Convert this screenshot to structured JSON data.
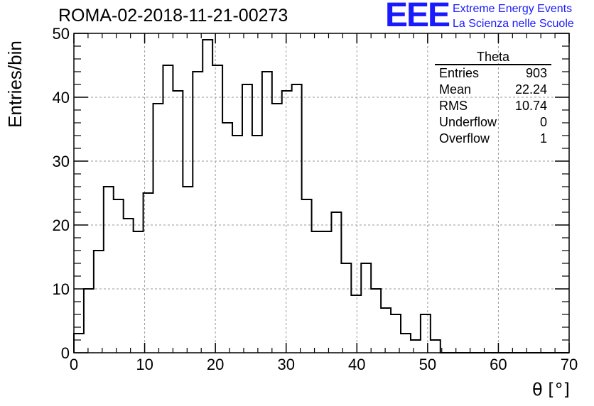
{
  "header": {
    "title": "ROMA-02-2018-11-21-00273",
    "logo_mark": "EEE",
    "logo_line1": "Extreme Energy Events",
    "logo_line2": "La Scienza nelle Scuole"
  },
  "stats_box": {
    "title": "Theta",
    "rows": [
      {
        "label": "Entries",
        "value": "903"
      },
      {
        "label": "Mean",
        "value": "22.24"
      },
      {
        "label": "RMS",
        "value": "10.74"
      },
      {
        "label": "Underflow",
        "value": "0"
      },
      {
        "label": "Overflow",
        "value": "1"
      }
    ]
  },
  "colors": {
    "logo": "#1a1aff",
    "histogram": "#000000",
    "grid": "#999999"
  },
  "chart_data": {
    "type": "bar",
    "style": "step-histogram",
    "xlabel": "θ [°]",
    "ylabel": "Entries/bin",
    "xlim": [
      0,
      70
    ],
    "ylim": [
      0,
      50
    ],
    "bin_width": 1.4,
    "x_ticks": [
      "0",
      "10",
      "20",
      "30",
      "40",
      "50",
      "60",
      "70"
    ],
    "y_ticks": [
      "0",
      "10",
      "20",
      "30",
      "40",
      "50"
    ],
    "grid": true,
    "values": [
      3,
      10,
      16,
      26,
      24,
      21,
      19,
      25,
      39,
      45,
      41,
      26,
      44,
      49,
      45,
      36,
      34,
      42,
      34,
      44,
      39,
      41,
      42,
      24,
      19,
      19,
      22,
      14,
      9,
      14,
      10,
      7,
      6,
      3,
      2,
      6,
      2,
      0,
      0,
      0,
      0,
      0,
      0,
      0,
      0,
      0,
      0,
      0,
      0,
      0
    ]
  }
}
